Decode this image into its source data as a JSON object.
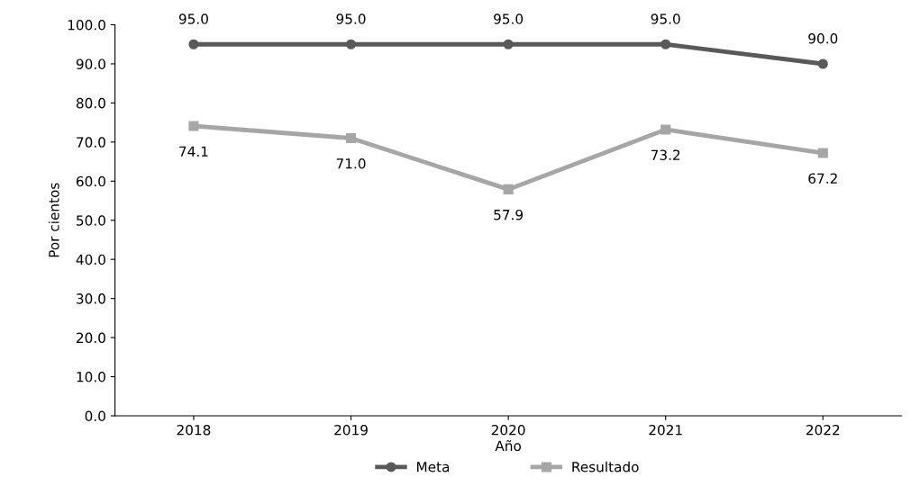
{
  "chart_data": {
    "type": "line",
    "xlabel": "Año",
    "ylabel": "Por cientos",
    "categories": [
      "2018",
      "2019",
      "2020",
      "2021",
      "2022"
    ],
    "series": [
      {
        "name": "Meta",
        "color": "#595959",
        "marker": "circle",
        "values": [
          95.0,
          95.0,
          95.0,
          95.0,
          90.0
        ],
        "value_labels": [
          "95.0",
          "95.0",
          "95.0",
          "95.0",
          "90.0"
        ]
      },
      {
        "name": "Resultado",
        "color": "#a6a6a6",
        "marker": "square",
        "values": [
          74.1,
          71.0,
          57.9,
          73.2,
          67.2
        ],
        "value_labels": [
          "74.1",
          "71.0",
          "57.9",
          "73.2",
          "67.2"
        ]
      }
    ],
    "ylim": [
      0,
      100
    ],
    "yticks": [
      {
        "value": 0,
        "label": "0.0"
      },
      {
        "value": 10,
        "label": "10.0"
      },
      {
        "value": 20,
        "label": "20.0"
      },
      {
        "value": 30,
        "label": "30.0"
      },
      {
        "value": 40,
        "label": "40.0"
      },
      {
        "value": 50,
        "label": "50.0"
      },
      {
        "value": 60,
        "label": "60.0"
      },
      {
        "value": 70,
        "label": "70.0"
      },
      {
        "value": 80,
        "label": "80.0"
      },
      {
        "value": 90,
        "label": "90.0"
      },
      {
        "value": 100,
        "label": "100.0"
      }
    ],
    "grid": false,
    "legend": "bottom",
    "line_style": "solid"
  }
}
